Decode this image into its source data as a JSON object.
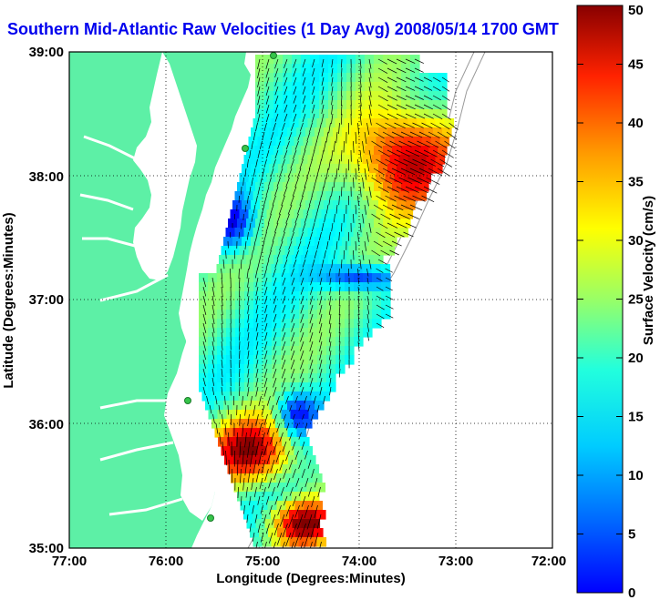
{
  "title": "Southern Mid-Atlantic Raw Velocities (1 Day Avg) 2008/05/14 1700 GMT",
  "map": {
    "xlabel": "Longitude (Degrees:Minutes)",
    "ylabel": "Latitude (Degrees:Minutes)",
    "x_ticks": [
      "77:00",
      "76:00",
      "75:00",
      "74:00",
      "73:00",
      "72:00"
    ],
    "y_ticks": [
      "39:00",
      "38:00",
      "37:00",
      "36:00",
      "35:00"
    ],
    "grid": "dotted",
    "colors": {
      "land": "#5df0a6",
      "water": "#ffffff",
      "vector": "#000000",
      "station": "#36c44a"
    }
  },
  "colorbar": {
    "label": "Surface Velocity (cm/s)",
    "ticks": [
      "50",
      "45",
      "40",
      "35",
      "30",
      "25",
      "20",
      "15",
      "10",
      "5",
      "0"
    ],
    "range": [
      0,
      50
    ],
    "colormap": "jet"
  }
}
